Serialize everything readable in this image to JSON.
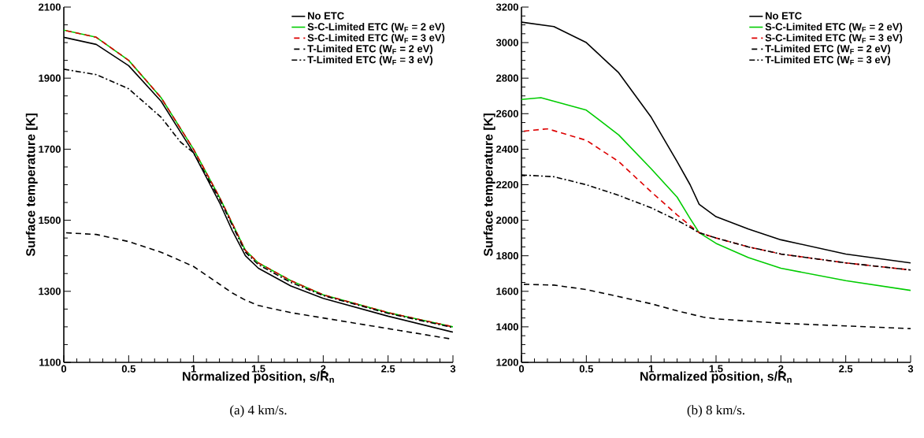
{
  "chart_data": [
    {
      "type": "line",
      "xlabel": "Normalized position, s/R$_{n}$",
      "ylabel": "Surface temperature [K]",
      "annotations": [
        "(a) 4 km/s."
      ],
      "xlim": [
        0,
        3
      ],
      "ylim": [
        1100,
        2100
      ],
      "xticks": [
        0,
        0.5,
        1,
        1.5,
        2,
        2.5,
        3
      ],
      "yticks": [
        1100,
        1300,
        1500,
        1700,
        1900,
        2100
      ],
      "legend": "top right",
      "series": [
        {
          "name": "No ETC",
          "color": "#000000",
          "line_style": "solid",
          "x": [
            0,
            0.25,
            0.5,
            0.75,
            1.0,
            1.2,
            1.3,
            1.4,
            1.5,
            1.75,
            2,
            2.5,
            3
          ],
          "values": [
            2015,
            1995,
            1935,
            1835,
            1690,
            1550,
            1470,
            1400,
            1365,
            1315,
            1280,
            1230,
            1185
          ]
        },
        {
          "name": "S-C-Limited ETC (W$_{F}$ = 2 eV)",
          "color": "#00cc00",
          "line_style": "solid",
          "x": [
            0,
            0.25,
            0.5,
            0.75,
            1.0,
            1.2,
            1.3,
            1.4,
            1.5,
            1.75,
            2,
            2.5,
            3
          ],
          "values": [
            2035,
            2015,
            1950,
            1845,
            1700,
            1565,
            1490,
            1415,
            1380,
            1330,
            1290,
            1240,
            1200
          ]
        },
        {
          "name": "S-C-Limited ETC (W$_{F}$ = 3 eV)",
          "color": "#dd0000",
          "line_style": "dashed",
          "x": [
            0,
            0.25,
            0.5,
            0.75,
            1.0,
            1.2,
            1.3,
            1.4,
            1.5,
            1.75,
            2,
            2.5,
            3
          ],
          "values": [
            2035,
            2015,
            1950,
            1845,
            1700,
            1565,
            1490,
            1415,
            1380,
            1330,
            1290,
            1240,
            1200
          ]
        },
        {
          "name": "T-Limited ETC (W$_{F}$ = 2 eV)",
          "color": "#000000",
          "line_style": "dashed",
          "x": [
            0,
            0.25,
            0.5,
            0.75,
            1.0,
            1.2,
            1.3,
            1.4,
            1.5,
            1.75,
            2,
            2.5,
            3
          ],
          "values": [
            1465,
            1460,
            1440,
            1410,
            1370,
            1320,
            1295,
            1275,
            1260,
            1240,
            1225,
            1195,
            1165
          ]
        },
        {
          "name": "T-Limited ETC (W$_{F}$ = 3 eV)",
          "color": "#000000",
          "line_style": "dashdot",
          "x": [
            0,
            0.25,
            0.5,
            0.75,
            0.9,
            1.0,
            1.2,
            1.3,
            1.4,
            1.5,
            1.75,
            2,
            2.5,
            3
          ],
          "values": [
            1925,
            1910,
            1870,
            1790,
            1720,
            1690,
            1560,
            1485,
            1410,
            1375,
            1325,
            1288,
            1238,
            1198
          ]
        }
      ]
    },
    {
      "type": "line",
      "xlabel": "Normalized position, s/R$_{n}$",
      "ylabel": "Surface temperature [K]",
      "annotations": [
        "(b) 8 km/s."
      ],
      "xlim": [
        0,
        3
      ],
      "ylim": [
        1200,
        3200
      ],
      "xticks": [
        0,
        0.5,
        1,
        1.5,
        2,
        2.5,
        3
      ],
      "yticks": [
        1200,
        1400,
        1600,
        1800,
        2000,
        2200,
        2400,
        2600,
        2800,
        3000,
        3200
      ],
      "legend": "top right",
      "series": [
        {
          "name": "No ETC",
          "color": "#000000",
          "line_style": "solid",
          "x": [
            0,
            0.25,
            0.5,
            0.75,
            1.0,
            1.2,
            1.3,
            1.37,
            1.5,
            1.75,
            2,
            2.5,
            3
          ],
          "values": [
            3115,
            3090,
            3000,
            2830,
            2580,
            2330,
            2200,
            2090,
            2020,
            1950,
            1890,
            1810,
            1760
          ]
        },
        {
          "name": "S-C-Limited ETC (W$_{F}$ = 2 eV)",
          "color": "#00cc00",
          "line_style": "solid",
          "x": [
            0,
            0.15,
            0.5,
            0.75,
            1.0,
            1.2,
            1.3,
            1.37,
            1.5,
            1.75,
            2,
            2.5,
            3
          ],
          "values": [
            2680,
            2690,
            2620,
            2480,
            2290,
            2130,
            2010,
            1930,
            1870,
            1790,
            1730,
            1660,
            1605
          ]
        },
        {
          "name": "S-C-Limited ETC (W$_{F}$ = 3 eV)",
          "color": "#dd0000",
          "line_style": "dashed",
          "x": [
            0,
            0.2,
            0.5,
            0.75,
            1.0,
            1.2,
            1.3,
            1.37,
            1.5,
            1.75,
            2,
            2.5,
            3
          ],
          "values": [
            2500,
            2515,
            2450,
            2330,
            2160,
            2030,
            1970,
            1930,
            1900,
            1850,
            1810,
            1760,
            1720
          ]
        },
        {
          "name": "T-Limited ETC (W$_{F}$ = 2 eV)",
          "color": "#000000",
          "line_style": "dashed",
          "x": [
            0,
            0.25,
            0.5,
            0.75,
            1.0,
            1.2,
            1.4,
            1.5,
            2,
            2.5,
            3
          ],
          "values": [
            1640,
            1635,
            1610,
            1570,
            1530,
            1490,
            1455,
            1445,
            1420,
            1405,
            1390
          ]
        },
        {
          "name": "T-Limited ETC (W$_{F}$ = 3 eV)",
          "color": "#000000",
          "line_style": "dashdot",
          "x": [
            0,
            0.25,
            0.5,
            0.75,
            1.0,
            1.2,
            1.3,
            1.37,
            1.5,
            1.75,
            2,
            2.5,
            3
          ],
          "values": [
            2255,
            2245,
            2200,
            2140,
            2070,
            2000,
            1960,
            1930,
            1900,
            1850,
            1810,
            1760,
            1720
          ]
        }
      ]
    }
  ]
}
